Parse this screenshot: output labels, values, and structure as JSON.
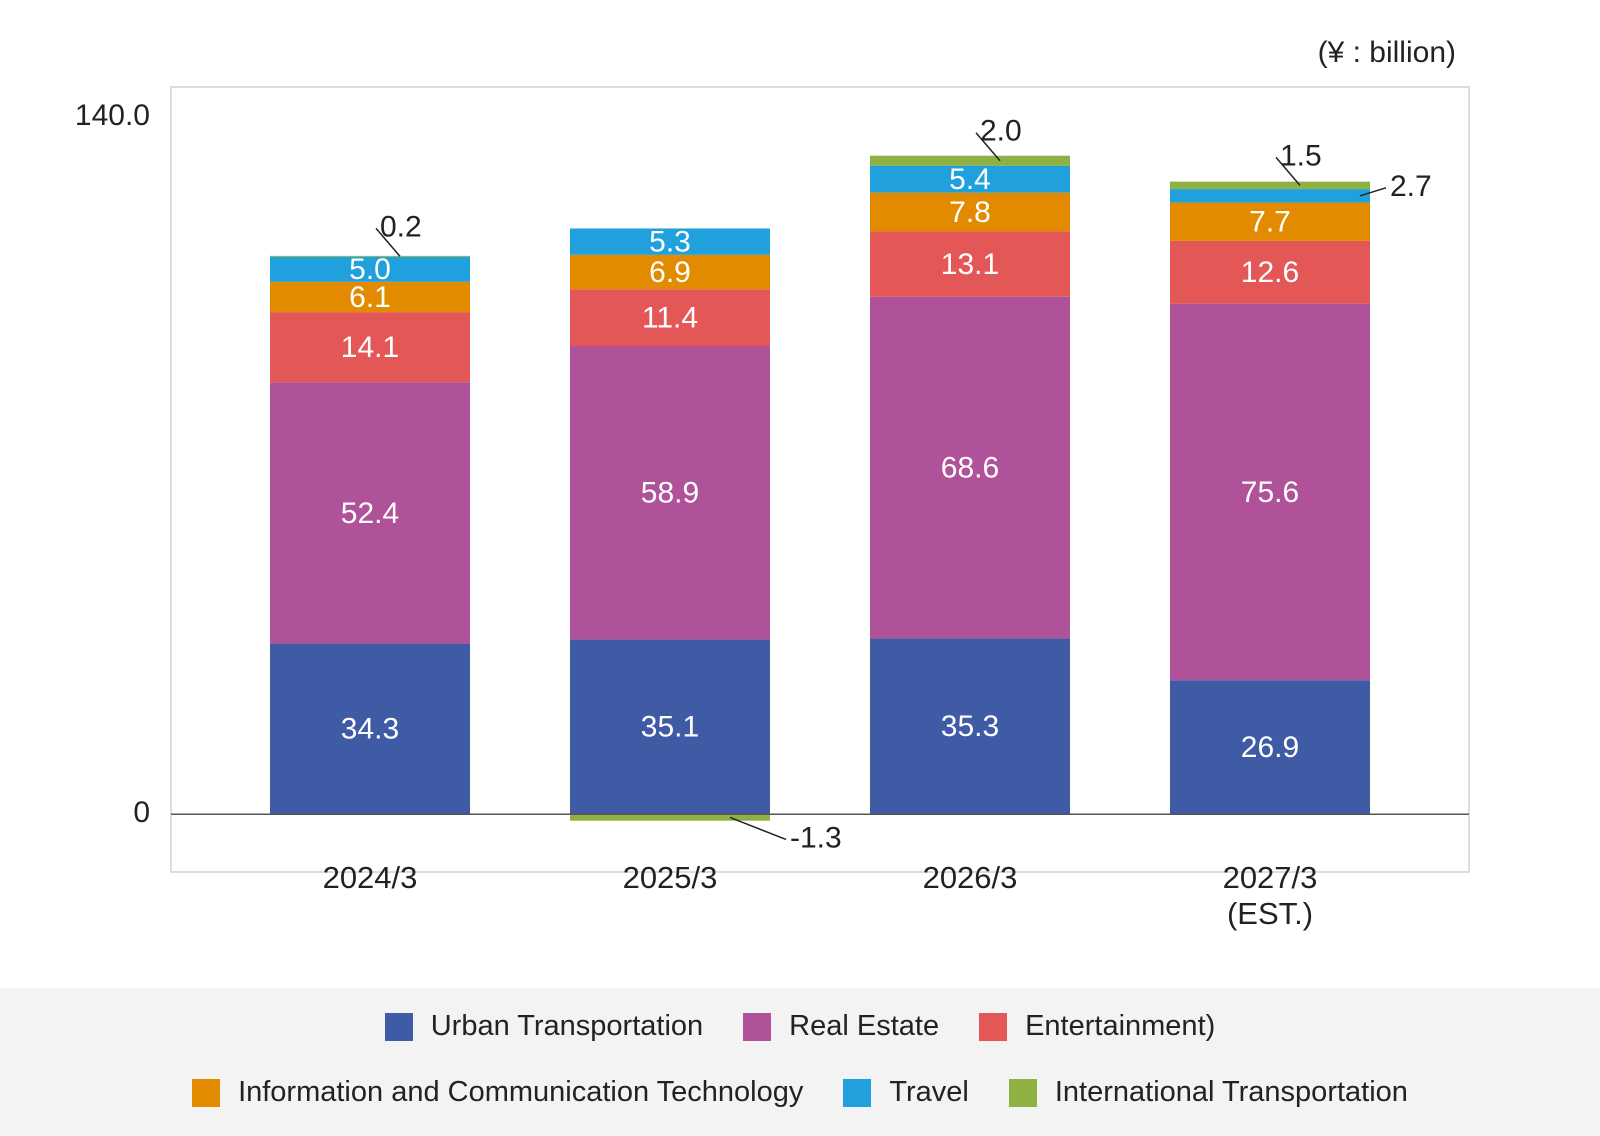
{
  "chart_data": {
    "type": "stacked_bar",
    "unit": "(¥ : billion)",
    "categories": [
      "2024/3",
      "2025/3",
      "2026/3",
      "2027/3\n(EST.)"
    ],
    "series": [
      {
        "name": "Urban Transportation",
        "color": "#3f5ba6",
        "values": [
          34.3,
          35.1,
          35.3,
          26.9
        ],
        "value_labels": [
          "34.3",
          "35.1",
          "35.3",
          "26.9"
        ]
      },
      {
        "name": "Real Estate",
        "color": "#b05299",
        "values": [
          52.4,
          58.9,
          68.6,
          75.6
        ],
        "value_labels": [
          "52.4",
          "58.9",
          "68.6",
          "75.6"
        ]
      },
      {
        "name": "Entertainment)",
        "color": "#e35757",
        "values": [
          14.1,
          11.4,
          13.1,
          12.6
        ],
        "value_labels": [
          "14.1",
          "11.4",
          "13.1",
          "12.6"
        ]
      },
      {
        "name": "Information and Communication Technology",
        "color": "#e38b00",
        "values": [
          6.1,
          6.9,
          7.8,
          7.7
        ],
        "value_labels": [
          "6.1",
          "6.9",
          "7.8",
          "7.7"
        ]
      },
      {
        "name": "Travel",
        "color": "#20a0dc",
        "values": [
          5.0,
          5.3,
          5.4,
          2.7
        ],
        "value_labels": [
          "5.0",
          "5.3",
          "5.4",
          "2.7"
        ]
      },
      {
        "name": "International Transportation",
        "color": "#8fb043",
        "values": [
          0.2,
          -1.3,
          2.0,
          1.5
        ],
        "value_labels": [
          "0.2",
          "-1.3",
          "2.0",
          "1.5"
        ]
      }
    ],
    "ylim": [
      -11.6,
      146
    ],
    "yticks": [
      0,
      {
        "value": 140,
        "label": "140.0"
      }
    ],
    "grid": false
  }
}
